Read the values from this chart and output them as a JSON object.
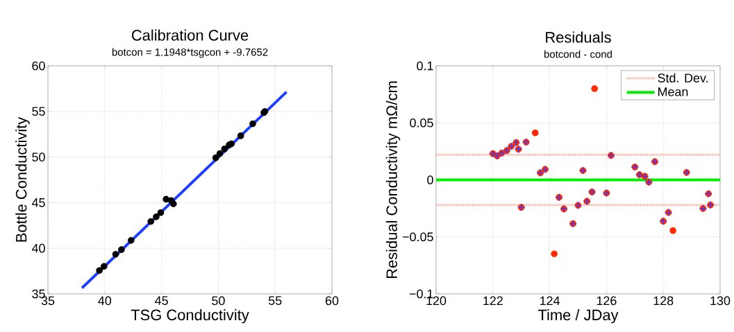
{
  "chart_data": [
    {
      "type": "scatter",
      "title": "Calibration Curve",
      "subtitle": "botcon = 1.1948*tsgcon + -9.7652",
      "xlabel": "TSG Conductivity",
      "ylabel": "Bottle Conductivity",
      "xlim": [
        35,
        60
      ],
      "ylim": [
        35,
        60
      ],
      "xticks": [
        35,
        40,
        45,
        50,
        55,
        60
      ],
      "yticks": [
        35,
        40,
        45,
        50,
        55,
        60
      ],
      "grid": true,
      "series": [
        {
          "type": "line",
          "color": "#1f3fff",
          "line_style": "solid",
          "x": [
            38,
            56
          ],
          "values": [
            35.64,
            57.14
          ]
        },
        {
          "color": "#000000",
          "marker": "circle",
          "x": [
            39.53,
            39.94,
            40.96,
            41.47,
            42.32,
            44.06,
            44.53,
            44.93,
            45.4,
            45.85,
            46.05,
            49.77,
            50.13,
            50.54,
            50.95,
            51.15,
            51.97,
            53.03,
            54.01,
            54.1
          ],
          "values": [
            37.56,
            38.02,
            39.34,
            39.85,
            40.86,
            42.94,
            43.45,
            43.91,
            45.38,
            45.23,
            44.87,
            49.92,
            50.38,
            50.89,
            51.32,
            51.45,
            52.33,
            53.65,
            54.87,
            55.0
          ]
        }
      ]
    },
    {
      "type": "scatter",
      "title": "Residuals",
      "subtitle": "botcond - cond",
      "xlabel": "Time / JDay",
      "ylabel": "Residual Conductivity mΩ/cm",
      "xlim": [
        120,
        130
      ],
      "ylim": [
        -0.1,
        0.1
      ],
      "xticks": [
        120,
        122,
        124,
        126,
        128,
        130
      ],
      "yticks": [
        {
          "value": -0.1,
          "label": "−0.1"
        },
        {
          "value": -0.05,
          "label": "−0.05"
        },
        0,
        0.05,
        0.1
      ],
      "grid": true,
      "legend": "top right",
      "ref_lines": [
        {
          "axis": "y",
          "value": 0.022,
          "label": "Std. Dev.",
          "color": "#ff8a70",
          "line_style": "dotted"
        },
        {
          "axis": "y",
          "value": -0.022,
          "color": "#ff8a70",
          "line_style": "dotted"
        },
        {
          "axis": "y",
          "value": 0,
          "label": "Mean",
          "color": "#00ee00",
          "line_style": "solid"
        }
      ],
      "series": [
        {
          "color": "#ff2a00",
          "marker": "circle",
          "x": [
            122.0,
            122.15,
            122.31,
            122.49,
            122.65,
            122.82,
            122.9,
            123.0,
            123.17,
            123.49,
            123.67,
            123.84,
            124.16,
            124.33,
            124.5,
            124.82,
            125.0,
            125.17,
            125.31,
            125.49,
            125.58,
            126.0,
            126.16,
            127.0,
            127.16,
            127.35,
            127.49,
            127.7,
            128.0,
            128.18,
            128.34,
            128.82,
            129.4,
            129.59,
            129.66
          ],
          "values": [
            0.023,
            0.021,
            0.0235,
            0.0257,
            0.0294,
            0.0327,
            0.0269,
            -0.0241,
            0.0331,
            0.0412,
            0.0061,
            0.0092,
            -0.0649,
            -0.0153,
            -0.0255,
            -0.0384,
            -0.0224,
            0.0082,
            -0.0188,
            -0.0106,
            0.08,
            -0.0116,
            0.0214,
            0.0112,
            0.0045,
            0.0031,
            -0.002,
            0.0159,
            -0.0363,
            -0.0286,
            -0.0445,
            0.0065,
            -0.0251,
            -0.0122,
            -0.022
          ]
        },
        {
          "color": "#3a3aff",
          "marker": "cross",
          "x": [
            122.0,
            122.15,
            122.31,
            122.49,
            122.65,
            122.82,
            122.9,
            123.0,
            123.17,
            123.67,
            123.84,
            124.33,
            124.5,
            124.82,
            125.0,
            125.17,
            125.31,
            125.49,
            126.0,
            126.16,
            127.0,
            127.16,
            127.35,
            127.49,
            127.7,
            128.0,
            128.18,
            128.82,
            129.4,
            129.59,
            129.66
          ],
          "values": [
            0.023,
            0.021,
            0.0235,
            0.0257,
            0.0294,
            0.0327,
            0.0269,
            -0.0241,
            0.0331,
            0.0061,
            0.0092,
            -0.0153,
            -0.0255,
            -0.0384,
            -0.0224,
            0.0082,
            -0.0188,
            -0.0106,
            -0.0116,
            0.0214,
            0.0112,
            0.0045,
            0.0031,
            -0.002,
            0.0159,
            -0.0363,
            -0.0286,
            0.0065,
            -0.0251,
            -0.0122,
            -0.022
          ]
        }
      ]
    }
  ]
}
